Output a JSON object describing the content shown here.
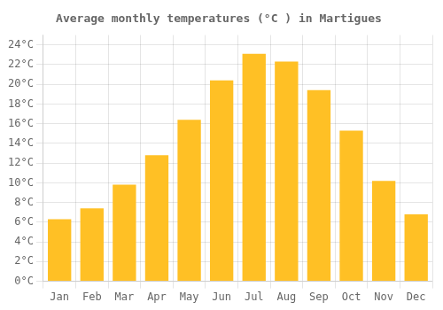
{
  "chart_data": {
    "type": "bar",
    "title": "Average monthly temperatures (°C ) in Martigues",
    "categories": [
      "Jan",
      "Feb",
      "Mar",
      "Apr",
      "May",
      "Jun",
      "Jul",
      "Aug",
      "Sep",
      "Oct",
      "Nov",
      "Dec"
    ],
    "values": [
      6.3,
      7.4,
      9.8,
      12.8,
      16.4,
      20.4,
      23.1,
      22.3,
      19.4,
      15.3,
      10.2,
      6.8
    ],
    "color": "#FFC025",
    "ylim": [
      0,
      25
    ],
    "yticks": [
      {
        "value": 0,
        "label": "0°C"
      },
      {
        "value": 2,
        "label": "2°C"
      },
      {
        "value": 4,
        "label": "4°C"
      },
      {
        "value": 6,
        "label": "6°C"
      },
      {
        "value": 8,
        "label": "8°C"
      },
      {
        "value": 10,
        "label": "10°C"
      },
      {
        "value": 12,
        "label": "12°C"
      },
      {
        "value": 14,
        "label": "14°C"
      },
      {
        "value": 16,
        "label": "16°C"
      },
      {
        "value": 18,
        "label": "18°C"
      },
      {
        "value": 20,
        "label": "20°C"
      },
      {
        "value": 22,
        "label": "22°C"
      },
      {
        "value": 24,
        "label": "24°C"
      }
    ],
    "grid": true
  }
}
